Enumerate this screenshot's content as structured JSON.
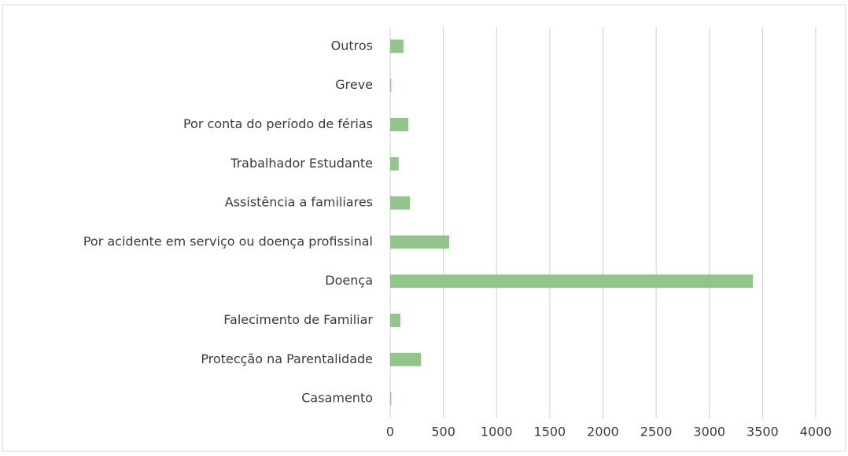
{
  "chart_data": {
    "type": "bar",
    "orientation": "horizontal",
    "categories": [
      "Casamento",
      "Protecção na Parentalidade",
      "Falecimento de Familiar",
      "Doença",
      "Por acidente em serviço ou doença profissinal",
      "Assistência a familiares",
      "Trabalhador Estudante",
      "Por conta do período de férias",
      "Greve",
      "Outros"
    ],
    "values": [
      10,
      290,
      95,
      3410,
      555,
      185,
      80,
      170,
      10,
      125
    ],
    "color": "#93c48b",
    "xlim": [
      0,
      4000
    ],
    "xticks": [
      0,
      500,
      1000,
      1500,
      2000,
      2500,
      3000,
      3500,
      4000
    ],
    "grid": true
  }
}
